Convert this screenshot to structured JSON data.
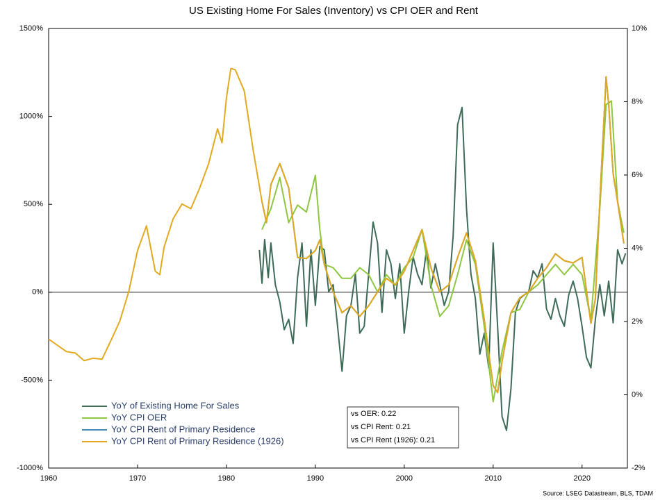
{
  "chart_data": {
    "type": "line",
    "title": "US Existing Home For Sales (Inventory) vs CPI OER and Rent",
    "source": "Source: LSEG Datastream, BLS, TDAM",
    "annotations": [
      "vs OER: 0.22",
      "vs CPI Rent: 0.21",
      "vs CPI Rent (1926): 0.21"
    ],
    "legend": "lower left",
    "xlim": [
      1960,
      2025.1
    ],
    "xticks": [
      1960,
      1970,
      1980,
      1990,
      2000,
      2010,
      2020
    ],
    "ylim": [
      -1000,
      1500
    ],
    "yticks": [
      {
        "value": -1000,
        "label": "-1000%"
      },
      {
        "value": -500,
        "label": "-500%"
      },
      {
        "value": 0,
        "label": "0%"
      },
      {
        "value": 500,
        "label": "500%"
      },
      {
        "value": 1000,
        "label": "1000%"
      },
      {
        "value": 1500,
        "label": "1500%"
      }
    ],
    "y2lim": [
      -2,
      10
    ],
    "y2ticks": [
      {
        "value": -2,
        "label": "-2%"
      },
      {
        "value": 0,
        "label": "0%"
      },
      {
        "value": 2,
        "label": "2%"
      },
      {
        "value": 4,
        "label": "4%"
      },
      {
        "value": 6,
        "label": "6%"
      },
      {
        "value": 8,
        "label": "8%"
      },
      {
        "value": 10,
        "label": "10%"
      }
    ],
    "series": [
      {
        "name": "YoY of Existing Home For Sales",
        "color": "#3e6b58",
        "axis": "y",
        "x": [
          1983.7,
          1984,
          1984.3,
          1984.7,
          1985,
          1985.5,
          1986,
          1986.5,
          1987,
          1987.5,
          1988,
          1988.5,
          1989,
          1989.5,
          1990,
          1990.5,
          1991,
          1991.5,
          1992,
          1992.5,
          1993,
          1993.5,
          1994,
          1994.5,
          1995,
          1995.5,
          1996,
          1996.5,
          1997,
          1997.5,
          1998,
          1998.5,
          1999,
          1999.5,
          2000,
          2000.5,
          2001,
          2001.5,
          2002,
          2002.5,
          2003,
          2003.5,
          2004,
          2004.5,
          2005,
          2005.5,
          2006,
          2006.5,
          2007,
          2007.5,
          2008,
          2008.5,
          2009,
          2009.5,
          2010,
          2010.5,
          2011,
          2011.5,
          2012,
          2012.5,
          2013,
          2014,
          2014.5,
          2015,
          2015.5,
          2016,
          2016.5,
          2017,
          2017.5,
          2018,
          2018.5,
          2019,
          2019.5,
          2020,
          2020.5,
          2021,
          2021.5,
          2022,
          2022.5,
          2023,
          2023.5,
          2024,
          2024.5,
          2024.9
        ],
        "values": [
          241,
          51,
          300,
          83,
          280,
          43,
          -55,
          -213,
          -154,
          -292,
          83,
          280,
          -194,
          241,
          -75,
          261,
          241,
          4,
          43,
          -194,
          -450,
          -134,
          -75,
          103,
          -233,
          -194,
          103,
          399,
          280,
          -115,
          241,
          162,
          -36,
          162,
          -233,
          4,
          201,
          103,
          43,
          241,
          24,
          162,
          43,
          -75,
          4,
          320,
          952,
          1051,
          478,
          103,
          -36,
          -352,
          -233,
          -430,
          280,
          -194,
          -707,
          -786,
          -549,
          -115,
          -36,
          4,
          122,
          83,
          162,
          -95,
          -154,
          -36,
          -134,
          -194,
          -16,
          63,
          -36,
          -194,
          -371,
          -430,
          -154,
          43,
          -134,
          63,
          -174,
          241,
          162,
          221
        ]
      },
      {
        "name": "YoY CPI OER",
        "color": "#8dc63f",
        "axis": "y2",
        "x": [
          1984,
          1985,
          1986,
          1987,
          1988,
          1989,
          1990,
          1990.5,
          1991,
          1992,
          1993,
          1994,
          1995,
          1996,
          1997,
          1998,
          1999,
          2000,
          2001,
          2002,
          2003,
          2004,
          2005,
          2006,
          2007,
          2008,
          2009,
          2010,
          2011,
          2012,
          2013,
          2014,
          2015,
          2016,
          2017,
          2018,
          2019,
          2020,
          2021,
          2022,
          2022.7,
          2023.3,
          2024,
          2024.7
        ],
        "values": [
          4.51,
          5.08,
          5.93,
          4.7,
          5.18,
          4.99,
          5.99,
          4.51,
          3.56,
          3.47,
          3.18,
          3.18,
          3.47,
          3.28,
          2.81,
          3.28,
          3.0,
          3.47,
          3.75,
          4.51,
          3.0,
          2.14,
          2.43,
          3.28,
          4.23,
          3.56,
          1.86,
          -0.19,
          1.19,
          2.24,
          2.33,
          2.81,
          3.0,
          3.28,
          3.56,
          3.28,
          3.56,
          3.28,
          2.05,
          5.08,
          7.92,
          8.02,
          5.27,
          4.42
        ]
      },
      {
        "name": "YoY CPI Rent of Primary Residence",
        "color": "#4a8ab8",
        "axis": "y2",
        "x": [
          1984,
          1984.5,
          1985,
          1986,
          1987,
          1988,
          1989,
          1990,
          1990.5,
          1991,
          1992,
          1993,
          1994,
          1995,
          1996,
          1997,
          1998,
          1999,
          2000,
          2001,
          2002,
          2003,
          2004,
          2005,
          2006,
          2007,
          2008,
          2009,
          2010,
          2010.5,
          2011,
          2012,
          2013,
          2014,
          2015,
          2016,
          2017,
          2018,
          2019,
          2020,
          2021,
          2021.5,
          2022,
          2022.7,
          2023,
          2023.5,
          2024,
          2024.7
        ],
        "values": [
          5.27,
          4.7,
          5.74,
          6.31,
          5.65,
          3.75,
          3.72,
          3.94,
          4.23,
          3.56,
          2.81,
          2.24,
          2.43,
          2.14,
          2.43,
          2.81,
          3.18,
          3.0,
          3.37,
          3.94,
          4.51,
          3.47,
          2.81,
          3.0,
          3.75,
          4.42,
          3.66,
          2.05,
          0.25,
          0.06,
          0.91,
          2.24,
          2.65,
          2.81,
          3.18,
          3.47,
          3.85,
          3.66,
          3.6,
          3.75,
          1.95,
          2.62,
          5.27,
          8.68,
          7.92,
          6.03,
          5.27,
          4.13
        ]
      },
      {
        "name": "YoY CPI Rent of Primary Residence (1926)",
        "color": "#e3a91e",
        "axis": "y2",
        "x": [
          1960,
          1961,
          1962,
          1963,
          1964,
          1965,
          1966,
          1967,
          1968,
          1969,
          1970,
          1971,
          1972,
          1972.5,
          1973,
          1974,
          1975,
          1976,
          1977,
          1978,
          1979,
          1979.5,
          1980,
          1980.5,
          1981,
          1982,
          1983,
          1984,
          1984.5,
          1985,
          1986,
          1987,
          1988,
          1989,
          1990,
          1990.5,
          1991,
          1992,
          1993,
          1994,
          1995,
          1996,
          1997,
          1998,
          1999,
          2000,
          2001,
          2002,
          2003,
          2004,
          2005,
          2006,
          2007,
          2008,
          2009,
          2010,
          2010.5,
          2011,
          2012,
          2013,
          2014,
          2015,
          2016,
          2017,
          2018,
          2019,
          2020,
          2021,
          2021.5,
          2022,
          2022.7,
          2023,
          2023.5,
          2024,
          2024.7
        ],
        "values": [
          1.52,
          1.35,
          1.18,
          1.14,
          0.93,
          1.0,
          0.97,
          1.48,
          2.01,
          2.81,
          3.94,
          4.61,
          3.37,
          3.28,
          4.04,
          4.8,
          5.21,
          5.08,
          5.65,
          6.31,
          7.26,
          6.88,
          8.11,
          8.91,
          8.87,
          8.3,
          6.69,
          5.27,
          4.7,
          5.74,
          6.31,
          5.65,
          3.75,
          3.72,
          3.94,
          4.23,
          3.56,
          2.81,
          2.24,
          2.43,
          2.14,
          2.43,
          2.81,
          3.18,
          3.0,
          3.37,
          3.94,
          4.51,
          3.47,
          2.81,
          3.0,
          3.75,
          4.42,
          3.66,
          2.05,
          0.25,
          0.06,
          0.91,
          2.24,
          2.65,
          2.81,
          3.18,
          3.47,
          3.85,
          3.66,
          3.6,
          3.75,
          1.95,
          2.62,
          5.27,
          8.68,
          7.92,
          6.03,
          5.27,
          4.13
        ]
      }
    ]
  }
}
